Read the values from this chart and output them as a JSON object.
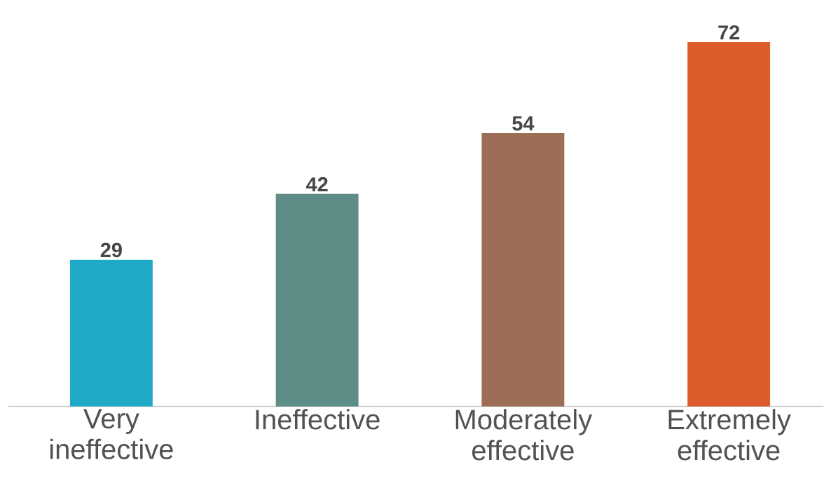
{
  "chart_data": {
    "type": "bar",
    "categories": [
      "Very ineffective",
      "Ineffective",
      "Moderately effective",
      "Extremely effective"
    ],
    "values": [
      29,
      42,
      54,
      72
    ],
    "colors": [
      "#1eaac6",
      "#5e8c86",
      "#9c6e56",
      "#dc5c2c"
    ],
    "data_labels": true
  }
}
